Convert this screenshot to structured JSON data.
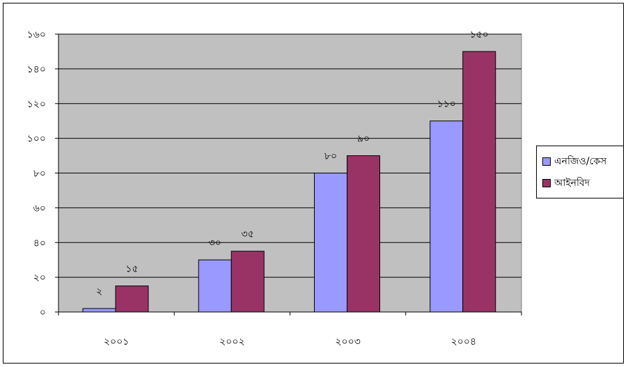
{
  "chart_data": {
    "type": "bar",
    "categories": [
      "২০০১",
      "২০০২",
      "২০০৩",
      "২০০৪"
    ],
    "series": [
      {
        "name": "এনজিও/কেস",
        "values": [
          2,
          30,
          80,
          110
        ],
        "value_labels": [
          "২",
          "৩০",
          "৮০",
          "১১০"
        ],
        "color": "#9999ff"
      },
      {
        "name": "আইনবিদ",
        "values": [
          15,
          35,
          90,
          150
        ],
        "value_labels": [
          "১৫",
          "৩৫",
          "৯০",
          "১৫০"
        ],
        "color": "#993366"
      }
    ],
    "y_ticks": [
      0,
      20,
      40,
      60,
      80,
      100,
      120,
      140,
      160
    ],
    "y_tick_labels": [
      "০",
      "২০",
      "৪০",
      "৬০",
      "৮০",
      "১০০",
      "১২০",
      "১৪০",
      "১৬০"
    ],
    "ylim": [
      0,
      160
    ],
    "grid": true,
    "plot_background": "#c0c0c0",
    "legend_position": "right",
    "title": "",
    "xlabel": "",
    "ylabel": ""
  }
}
